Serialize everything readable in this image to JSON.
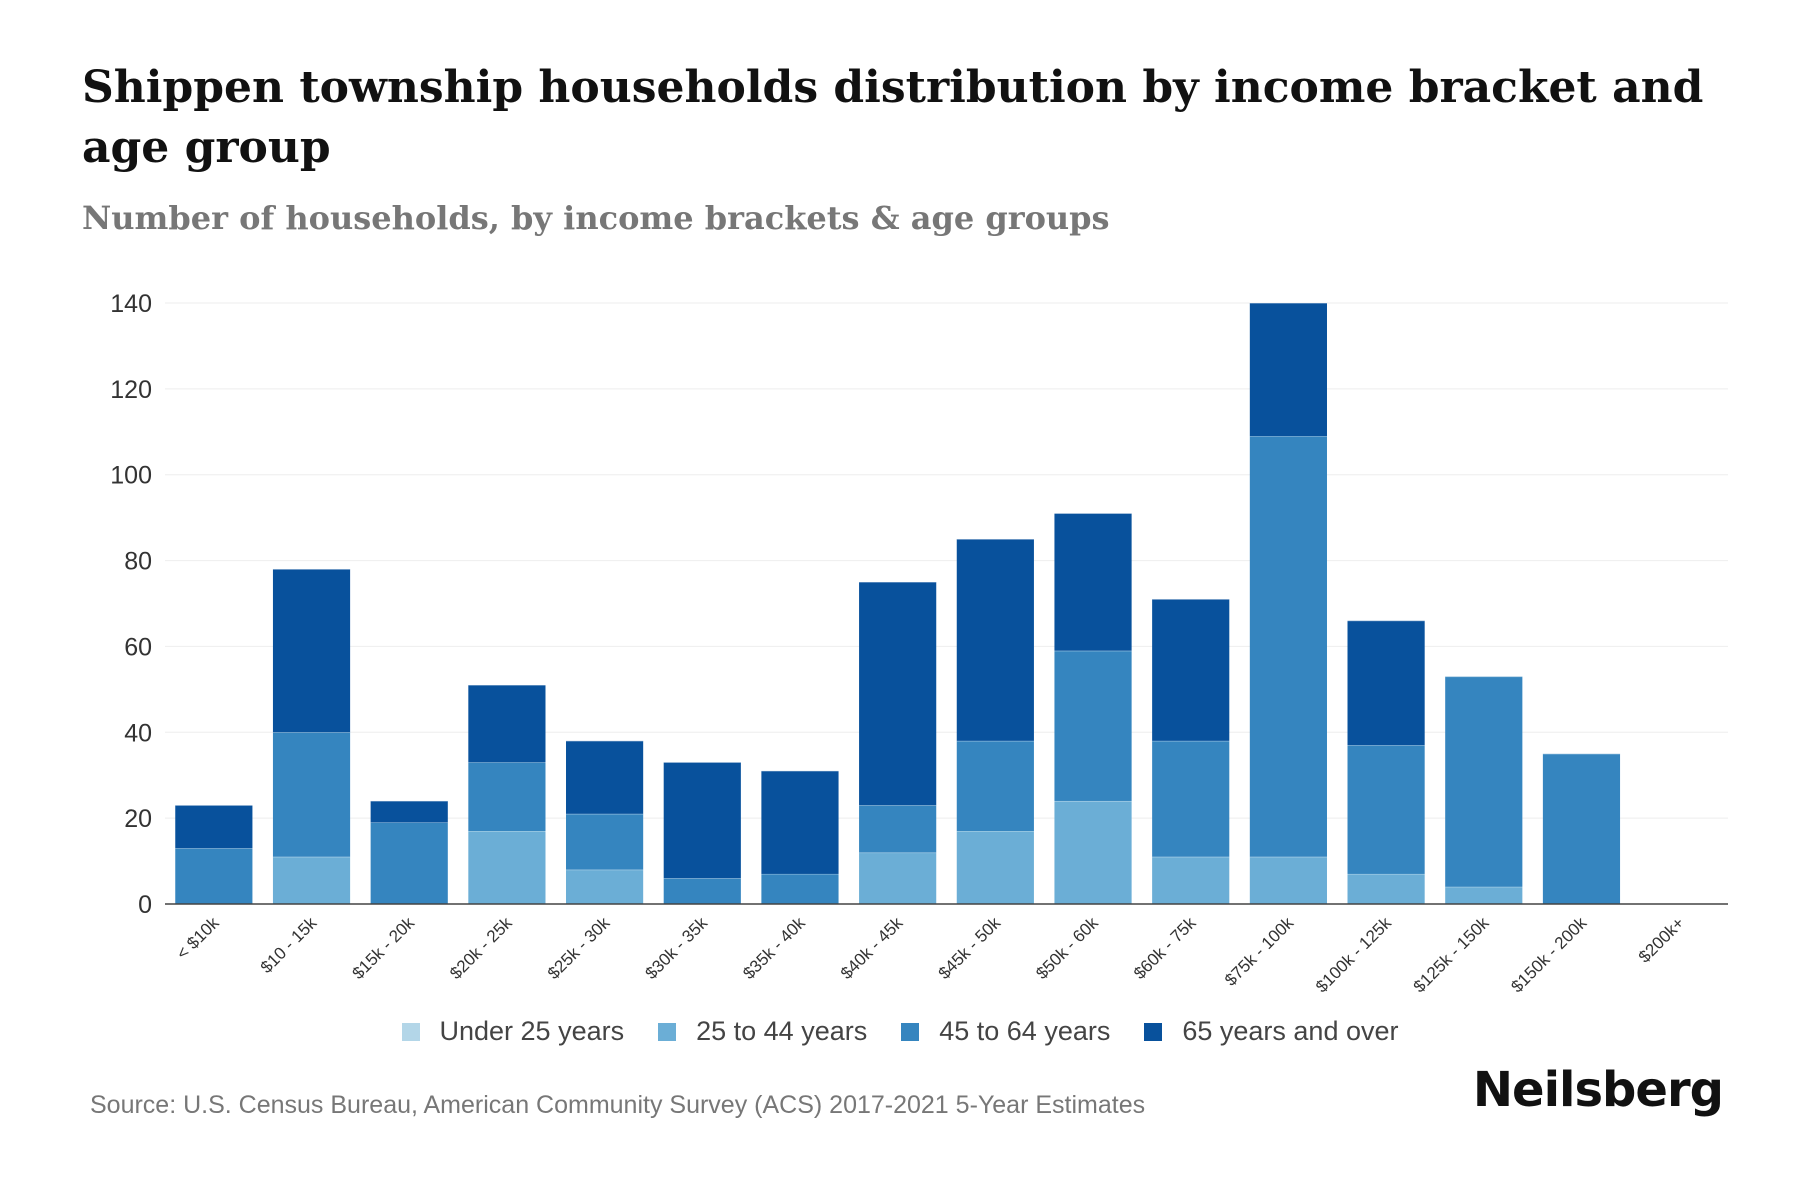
{
  "header": {
    "title": "Shippen township households distribution by income bracket and age group",
    "subtitle": "Number of households, by income brackets & age groups"
  },
  "footer": {
    "source": "Source: U.S. Census Bureau, American Community Survey (ACS) 2017-2021 5-Year Estimates",
    "brand": "Neilsberg"
  },
  "chart_data": {
    "type": "bar",
    "stacked": true,
    "title": "Shippen township households distribution by income bracket and age group",
    "subtitle": "Number of households, by income brackets & age groups",
    "xlabel": "",
    "ylabel": "",
    "ylim": [
      0,
      140
    ],
    "yticks": [
      0,
      20,
      40,
      60,
      80,
      100,
      120,
      140
    ],
    "grid": true,
    "legend_position": "bottom",
    "categories": [
      "< $10k",
      "$10 - 15k",
      "$15k - 20k",
      "$20k - 25k",
      "$25k - 30k",
      "$30k - 35k",
      "$35k - 40k",
      "$40k - 45k",
      "$45k - 50k",
      "$50k - 60k",
      "$60k - 75k",
      "$75k - 100k",
      "$100k - 125k",
      "$125k - 150k",
      "$150k - 200k",
      "$200k+"
    ],
    "series": [
      {
        "name": "Under 25 years",
        "color": "#b3d6e8",
        "values": [
          0,
          0,
          0,
          0,
          0,
          0,
          0,
          0,
          0,
          0,
          0,
          0,
          0,
          0,
          0,
          0
        ]
      },
      {
        "name": "25 to 44 years",
        "color": "#6baed6",
        "values": [
          0,
          11,
          0,
          17,
          8,
          0,
          0,
          12,
          17,
          24,
          11,
          11,
          7,
          4,
          0,
          0
        ]
      },
      {
        "name": "45 to 64 years",
        "color": "#3585bf",
        "values": [
          13,
          29,
          19,
          16,
          13,
          6,
          7,
          11,
          21,
          35,
          27,
          98,
          30,
          49,
          35,
          0
        ]
      },
      {
        "name": "65 years and over",
        "color": "#08519c",
        "values": [
          10,
          38,
          5,
          18,
          17,
          27,
          24,
          52,
          47,
          32,
          33,
          31,
          29,
          0,
          0,
          0
        ]
      }
    ]
  }
}
